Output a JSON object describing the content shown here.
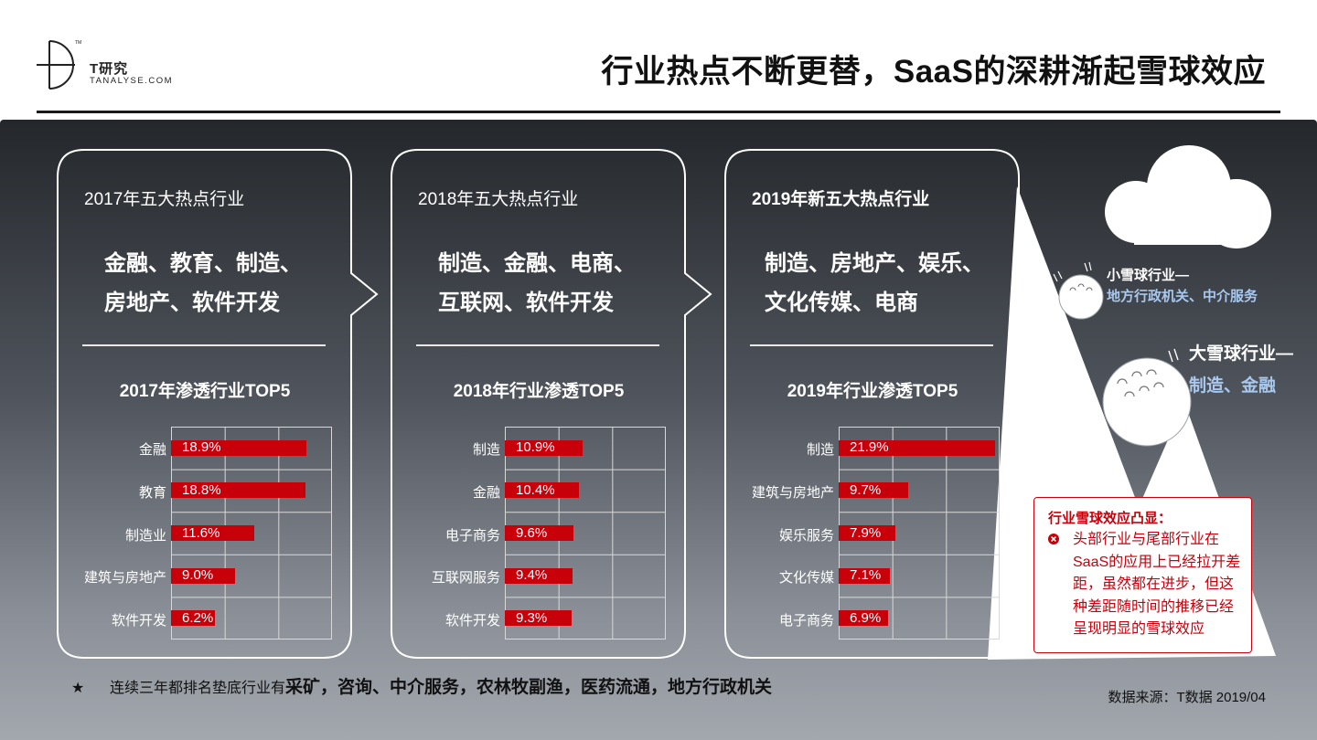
{
  "header": {
    "logo_name": "T研究",
    "logo_sub": "TANALYSE.COM",
    "title": "行业热点不断更替，SaaS的深耕渐起雪球效应"
  },
  "colors": {
    "accent_red": "#c8000a",
    "panel_dark": "#24272b",
    "highlight_blue": "#a9c8ee"
  },
  "cards": [
    {
      "title": "2017年五大热点行业",
      "hot_lines": [
        "金融、教育、制造、",
        "房地产、软件开发"
      ],
      "top5_title": "2017年渗透行业TOP5",
      "rows": [
        {
          "label": "金融",
          "value": "18.9%",
          "pct": 18.9
        },
        {
          "label": "教育",
          "value": "18.8%",
          "pct": 18.8
        },
        {
          "label": "制造业",
          "value": "11.6%",
          "pct": 11.6
        },
        {
          "label": "建筑与房地产",
          "value": "9.0%",
          "pct": 9.0
        },
        {
          "label": "软件开发",
          "value": "6.2%",
          "pct": 6.2
        }
      ]
    },
    {
      "title": "2018年五大热点行业",
      "hot_lines": [
        "制造、金融、电商、",
        "互联网、软件开发"
      ],
      "top5_title": "2018年行业渗透TOP5",
      "rows": [
        {
          "label": "制造",
          "value": "10.9%",
          "pct": 10.9
        },
        {
          "label": "金融",
          "value": "10.4%",
          "pct": 10.4
        },
        {
          "label": "电子商务",
          "value": "9.6%",
          "pct": 9.6
        },
        {
          "label": "互联网服务",
          "value": "9.4%",
          "pct": 9.4
        },
        {
          "label": "软件开发",
          "value": "9.3%",
          "pct": 9.3
        }
      ]
    },
    {
      "title": "2019年新五大热点行业",
      "hot_lines": [
        "制造、房地产、娱乐、",
        "文化传媒、电商"
      ],
      "top5_title": "2019年行业渗透TOP5",
      "rows": [
        {
          "label": "制造",
          "value": "21.9%",
          "pct": 21.9
        },
        {
          "label": "建筑与房地产",
          "value": "9.7%",
          "pct": 9.7
        },
        {
          "label": "娱乐服务",
          "value": "7.9%",
          "pct": 7.9
        },
        {
          "label": "文化传媒",
          "value": "7.1%",
          "pct": 7.1
        },
        {
          "label": "电子商务",
          "value": "6.9%",
          "pct": 6.9
        }
      ]
    }
  ],
  "snowball": {
    "small_title": "小雪球行业—",
    "small_sub": "地方行政机关、中介服务",
    "big_title": "大雪球行业—",
    "big_sub": "制造、金融"
  },
  "callout": {
    "title": "行业雪球效应凸显：",
    "body": "头部行业与尾部行业在SaaS的应用上已经拉开差距，虽然都在进步，但这种差距随时间的推移已经呈现明显的雪球效应"
  },
  "footnote": {
    "star": "★",
    "prefix": "连续三年都排名垫底行业有",
    "emphasis": "采矿，咨询、中介服务，农林牧副渔，医药流通，地方行政机关"
  },
  "source": "数据来源：T数据 2019/04"
}
